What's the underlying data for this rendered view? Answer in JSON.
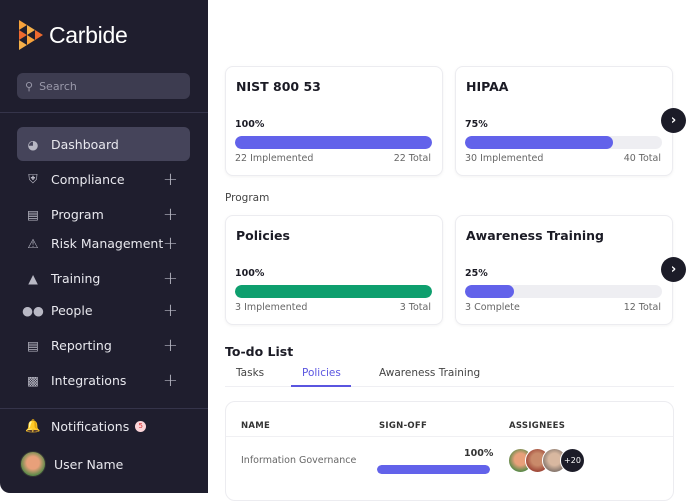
{
  "brand": {
    "name": "Carbide",
    "accent": "#6262ea",
    "success": "#0e9f6e",
    "logo_colors": [
      "#f7a23b",
      "#ee6a2f"
    ]
  },
  "sidebar": {
    "search_placeholder": "Search",
    "items": [
      {
        "label": "Dashboard",
        "icon": "gauge-icon",
        "active": true,
        "expandable": false
      },
      {
        "label": "Compliance",
        "icon": "shield-icon",
        "expandable": true
      },
      {
        "label": "Program",
        "icon": "clipboard-icon",
        "expandable": true
      },
      {
        "label": "Risk Management",
        "icon": "warning-icon",
        "expandable": true
      },
      {
        "label": "Training",
        "icon": "graduation-cap-icon",
        "expandable": true
      },
      {
        "label": "People",
        "icon": "people-icon",
        "expandable": true
      },
      {
        "label": "Reporting",
        "icon": "chart-icon",
        "expandable": true
      },
      {
        "label": "Integrations",
        "icon": "puzzle-icon",
        "expandable": true
      }
    ],
    "notifications": {
      "label": "Notifications",
      "count": "5"
    },
    "user": {
      "name": "User Name"
    }
  },
  "frameworks": [
    {
      "title": "NIST 800 53",
      "percent_label": "100%",
      "progress": 100,
      "left": "22 Implemented",
      "right": "22 Total",
      "color": "#6262ea"
    },
    {
      "title": "HIPAA",
      "percent_label": "75%",
      "progress": 75,
      "left": "30 Implemented",
      "right": "40 Total",
      "color": "#6262ea"
    }
  ],
  "program": {
    "label": "Program",
    "cards": [
      {
        "title": "Policies",
        "percent_label": "100%",
        "progress": 100,
        "left": "3 Implemented",
        "right": "3 Total",
        "color": "#0e9f6e"
      },
      {
        "title": "Awareness Training",
        "percent_label": "25%",
        "progress": 25,
        "left": "3 Complete",
        "right": "12 Total",
        "color": "#6262ea"
      }
    ]
  },
  "todo": {
    "title": "To-do List",
    "tabs": [
      "Tasks",
      "Policies",
      "Awareness Training"
    ],
    "active_tab": "Policies",
    "columns": [
      "NAME",
      "SIGN-OFF",
      "ASSIGNEES"
    ],
    "rows": [
      {
        "name": "Information Governance",
        "signoff_label": "100%",
        "signoff": 100,
        "more_assignees": "+20"
      }
    ]
  }
}
